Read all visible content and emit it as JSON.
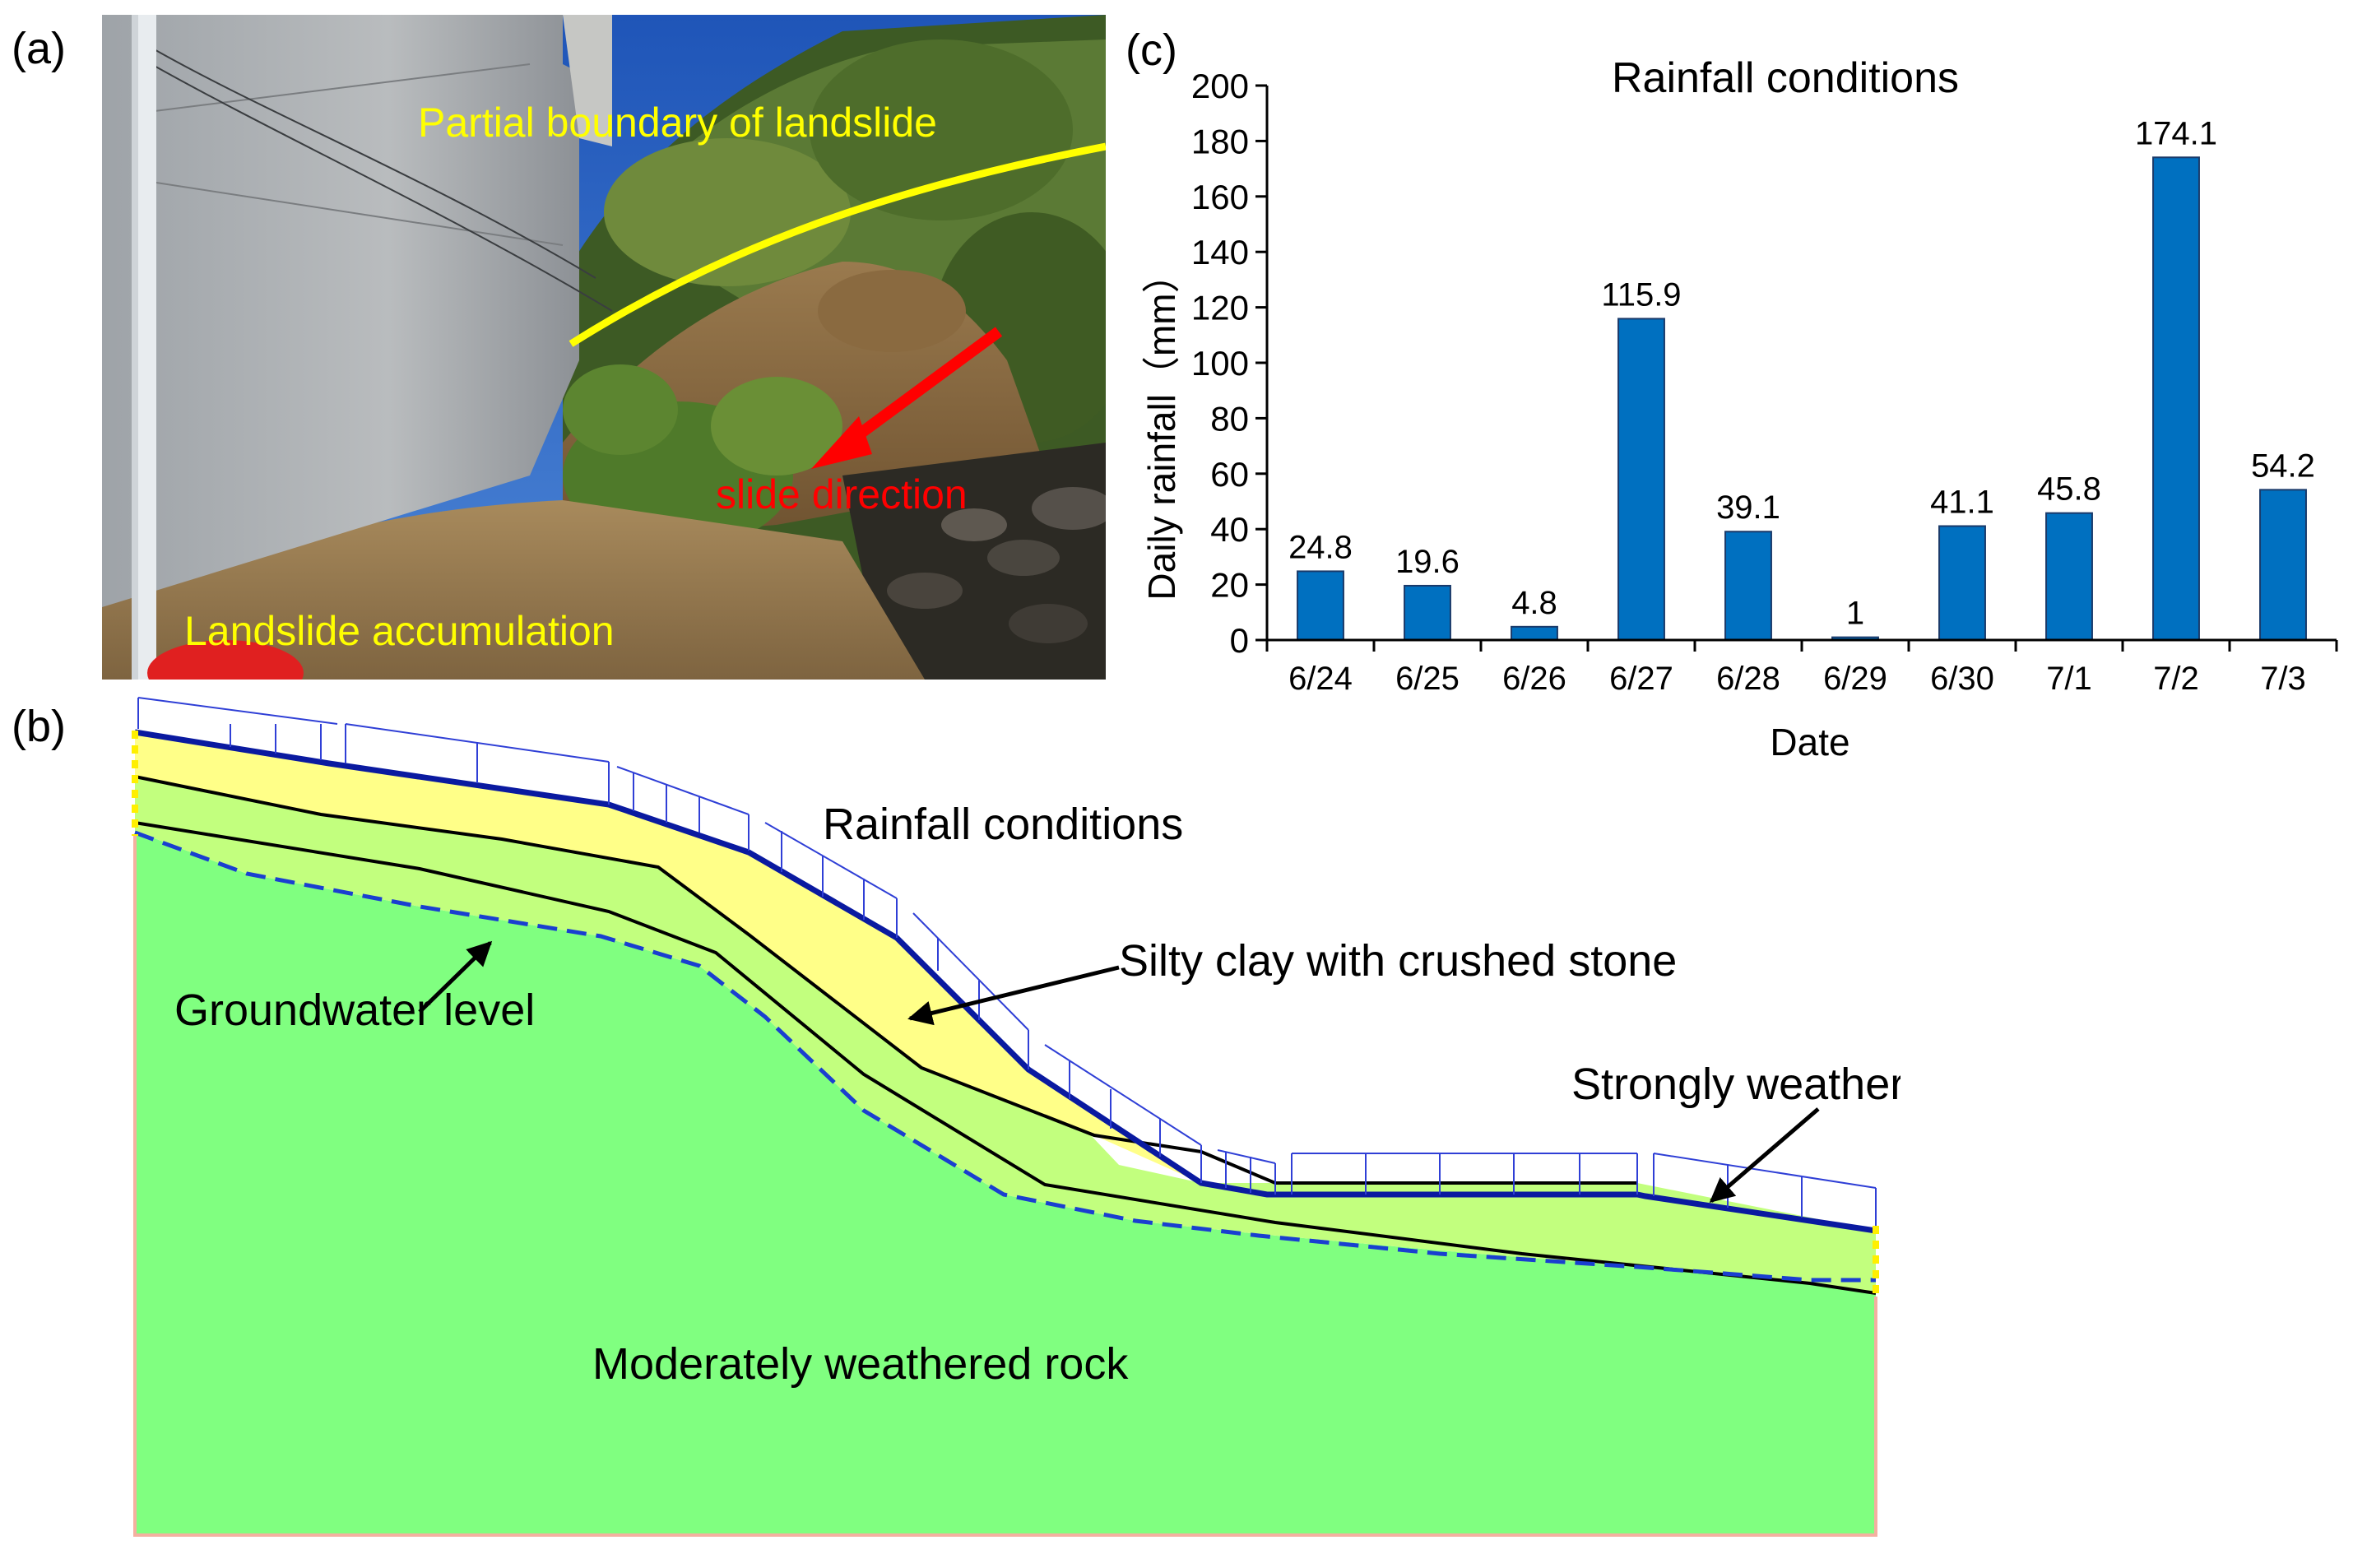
{
  "panels": {
    "a": {
      "tag": "(a)",
      "labels": {
        "boundary": "Partial boundary of landslide",
        "direction": "slide direction",
        "accumulation": "Landslide accumulation"
      },
      "colors": {
        "boundary": "#ffff00",
        "direction": "#ff0000",
        "accumulation": "#ffff00"
      }
    },
    "b": {
      "tag": "(b)",
      "labels": {
        "rainfall": "Rainfall conditions",
        "silty": "Silty clay with crushed stone",
        "groundwater": "Groundwater level",
        "strong": "Strongly weathered rock",
        "moderate": "Moderately weathered rock"
      },
      "colors": {
        "silty": "#ffff88",
        "strong": "#c2ff7e",
        "moderate": "#80ff80",
        "surface": "#0a1aa0",
        "groundwater": "#1a3fd0",
        "rain_arrows": "#2f3fd6"
      }
    },
    "c": {
      "tag": "(c)"
    }
  },
  "chart_data": {
    "type": "bar",
    "title": "Rainfall conditions",
    "xlabel": "Date",
    "ylabel": "Daily rainfall（mm）",
    "categories": [
      "6/24",
      "6/25",
      "6/26",
      "6/27",
      "6/28",
      "6/29",
      "6/30",
      "7/1",
      "7/2",
      "7/3"
    ],
    "values": [
      24.8,
      19.6,
      4.8,
      115.9,
      39.1,
      1,
      41.1,
      45.8,
      174.1,
      54.2
    ],
    "data_labels": [
      "24.8",
      "19.6",
      "4.8",
      "115.9",
      "39.1",
      "1",
      "41.1",
      "45.8",
      "174.1",
      "54.2"
    ],
    "ylim": [
      0,
      200
    ],
    "yticks": [
      0,
      20,
      40,
      60,
      80,
      100,
      120,
      140,
      160,
      180,
      200
    ],
    "bar_color": "#0070c0",
    "grid": false,
    "legend": "none"
  }
}
